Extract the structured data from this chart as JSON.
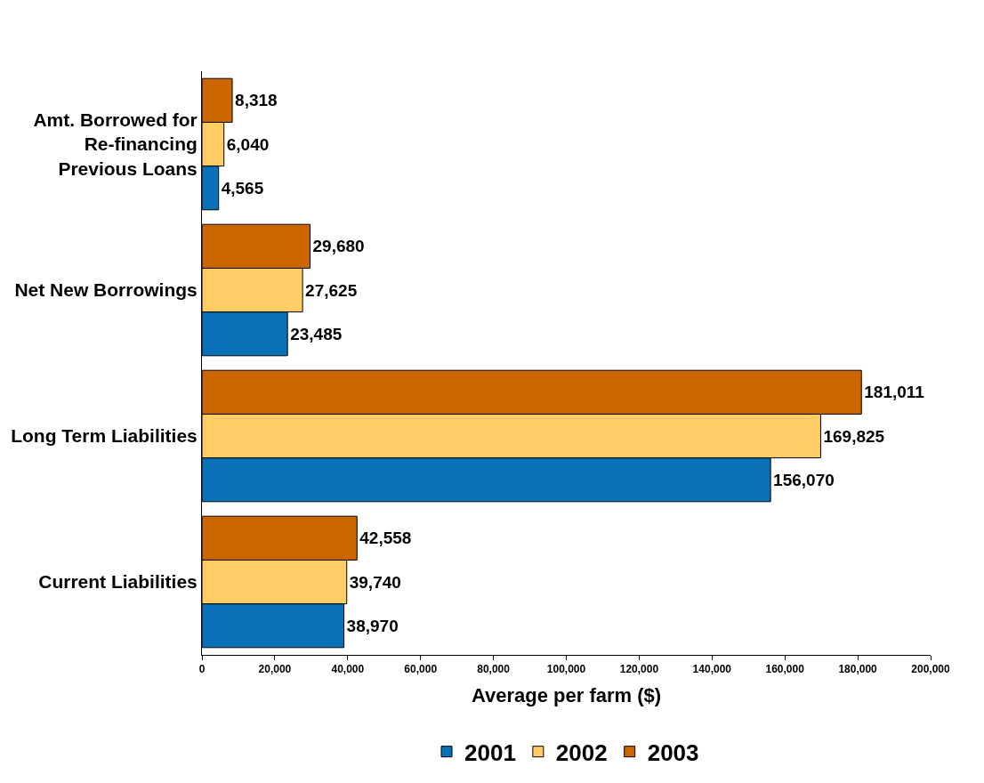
{
  "chart_data": {
    "type": "bar",
    "orientation": "horizontal",
    "xlabel": "Average per farm ($)",
    "categories": [
      "Amt. Borrowed for\nRe-financing\nPrevious Loans",
      "Net New Borrowings",
      "Long Term Liabilities",
      "Current Liabilities"
    ],
    "series": [
      {
        "name": "2001",
        "color": "#0a70b8",
        "values": [
          4565,
          23485,
          156070,
          38970
        ],
        "value_labels": [
          "4,565",
          "23,485",
          "156,070",
          "38,970"
        ]
      },
      {
        "name": "2002",
        "color": "#ffcc66",
        "values": [
          6040,
          27625,
          169825,
          39740
        ],
        "value_labels": [
          "6,040",
          "27,625",
          "169,825",
          "39,740"
        ]
      },
      {
        "name": "2003",
        "color": "#cc6600",
        "values": [
          8318,
          29680,
          181011,
          42558
        ],
        "value_labels": [
          "8,318",
          "29,680",
          "181,011",
          "42,558"
        ]
      }
    ],
    "xlim": [
      0,
      200000
    ],
    "xticks": [
      0,
      {
        "value": 20000,
        "label": "20,000"
      },
      {
        "value": 40000,
        "label": "40,000"
      },
      {
        "value": 60000,
        "label": "60,000"
      },
      {
        "value": 80000,
        "label": "80,000"
      },
      {
        "value": 100000,
        "label": "100,000"
      },
      {
        "value": 120000,
        "label": "120,000"
      },
      {
        "value": 140000,
        "label": "140,000"
      },
      {
        "value": 160000,
        "label": "160,000"
      },
      {
        "value": 180000,
        "label": "180,000"
      },
      {
        "value": 200000,
        "label": "200,000"
      }
    ],
    "legend": "bottom"
  }
}
